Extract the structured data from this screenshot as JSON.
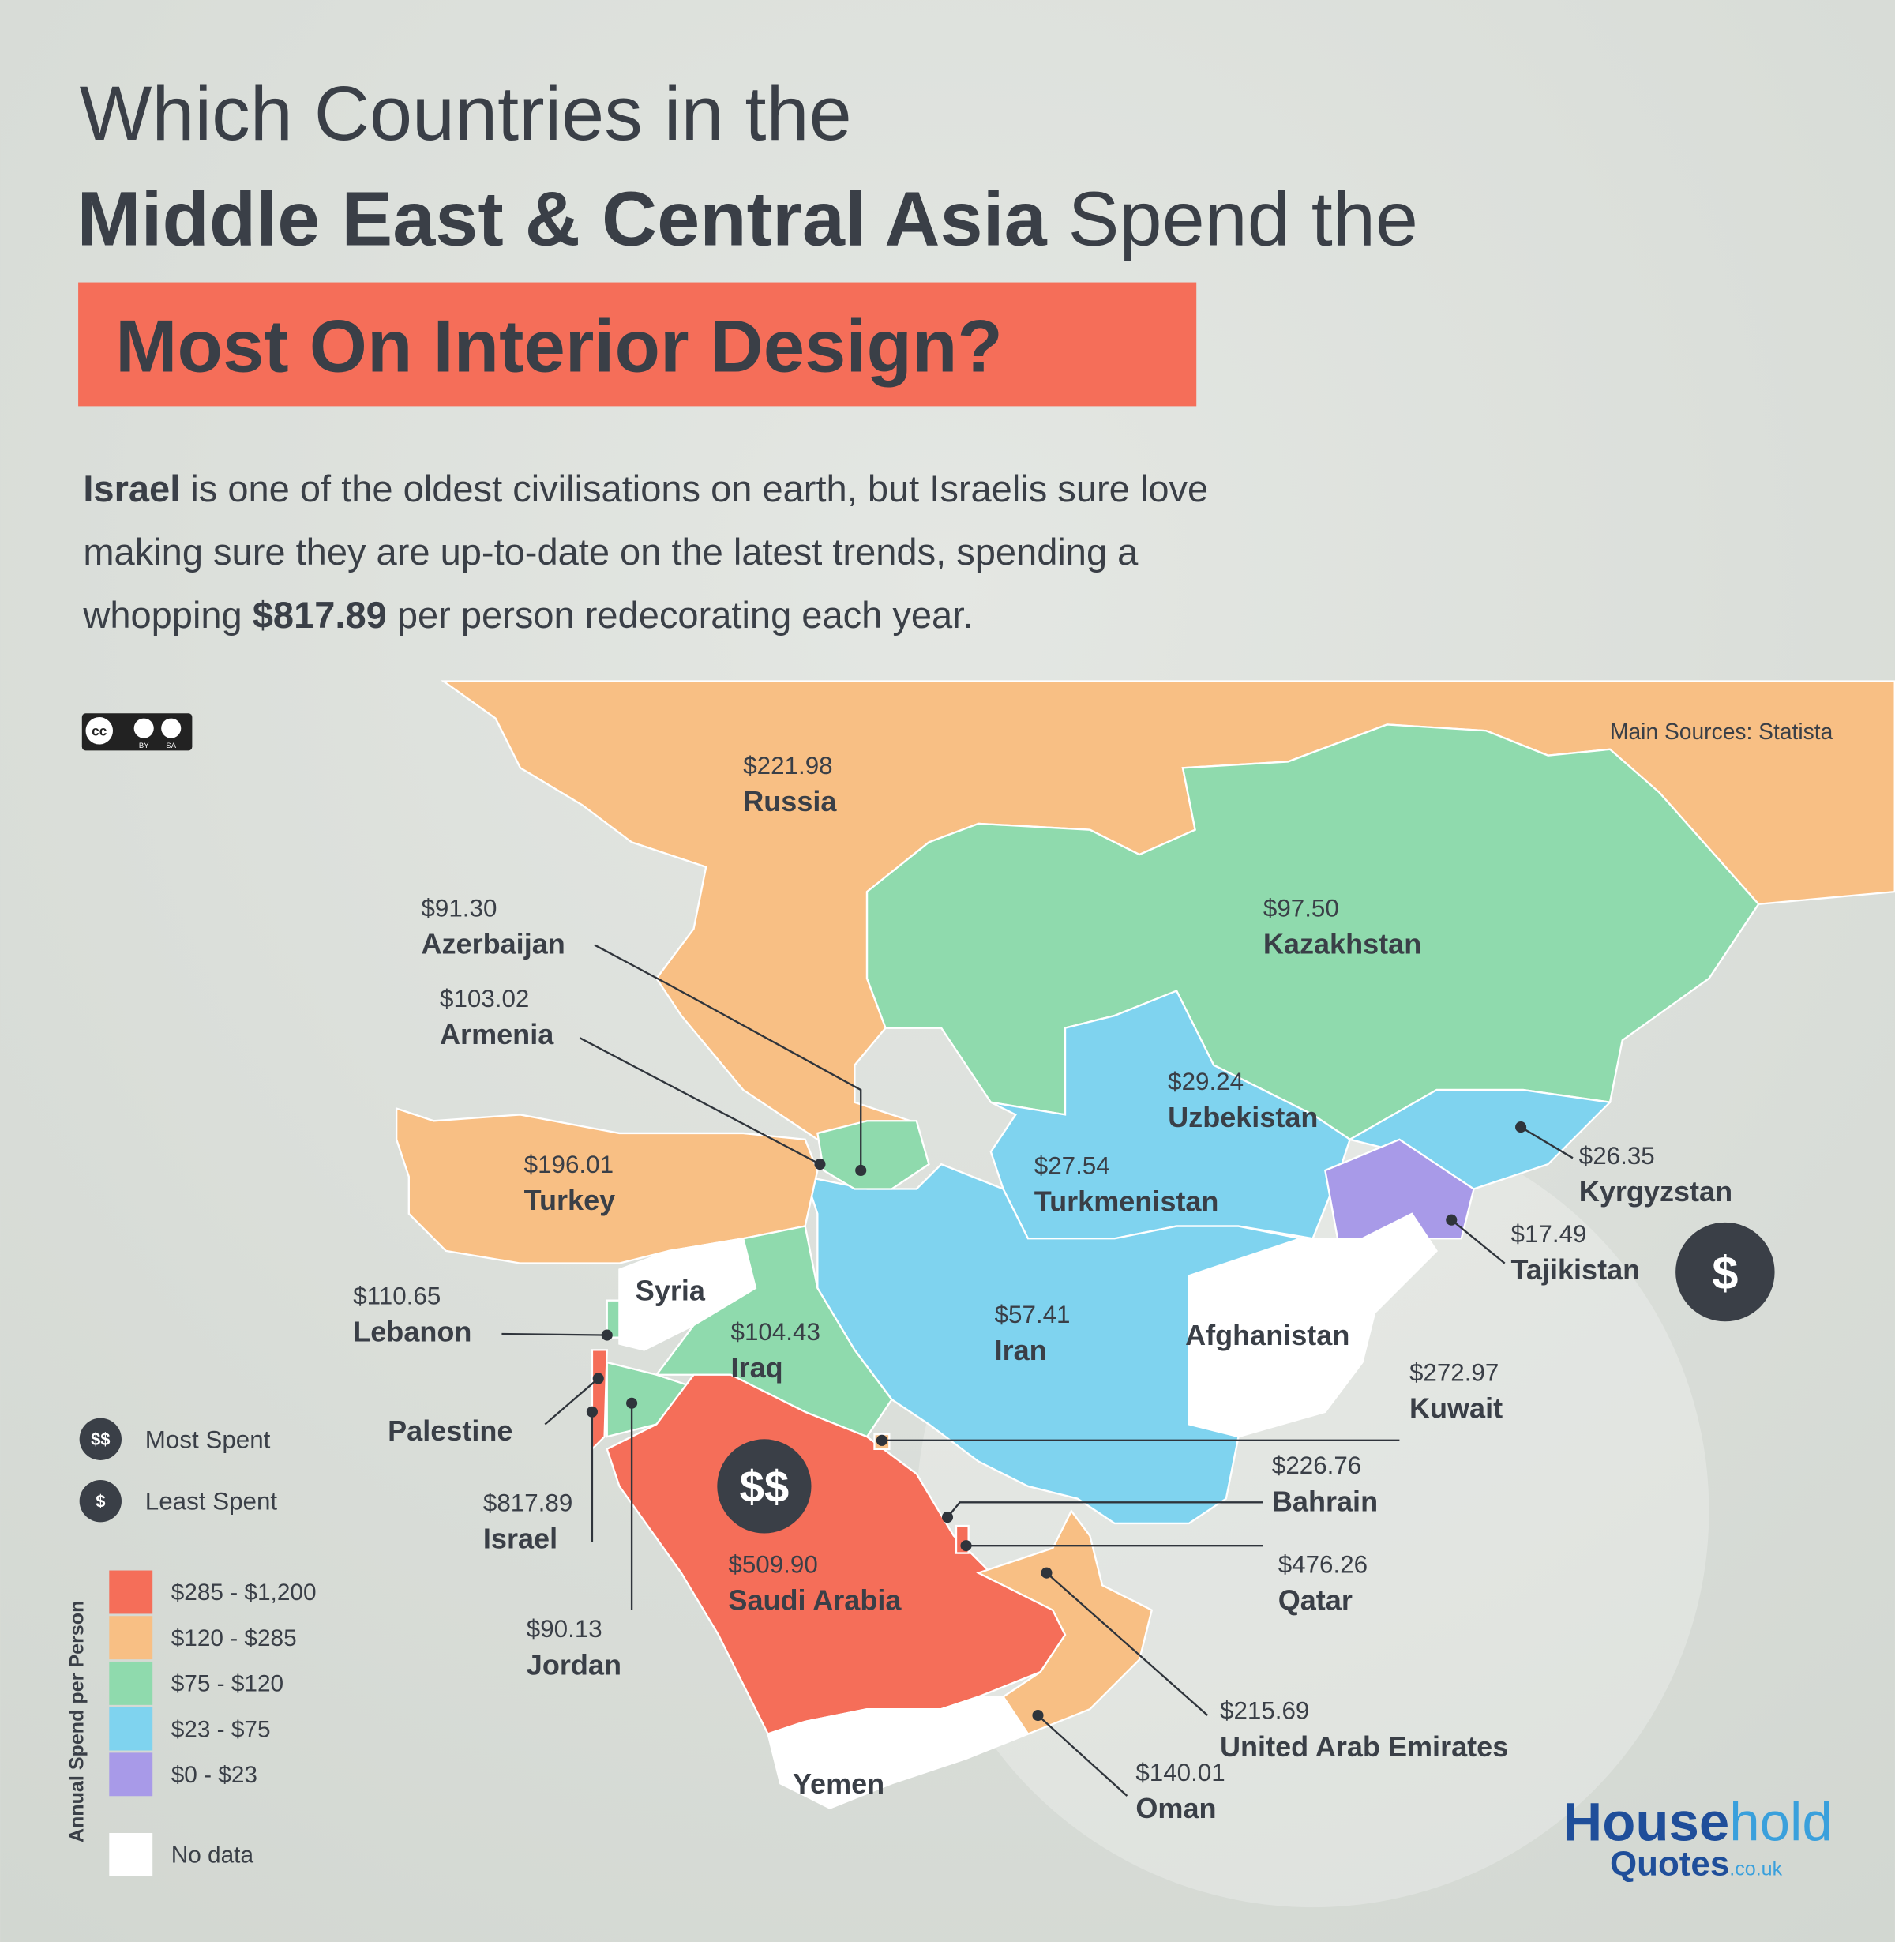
{
  "header": {
    "title_line1": "Which Countries in the",
    "title_line2_bold": "Middle East & Central Asia",
    "title_line2_rest": " Spend the",
    "highlight": "Most On Interior Design?"
  },
  "intro": {
    "lines": [
      [
        {
          "text": "Israel",
          "bold": true
        },
        {
          "text": " is one of the oldest civilisations on earth, but Israelis sure love",
          "bold": false
        }
      ],
      [
        {
          "text": "making sure they are up-to-date on the latest trends, spending a",
          "bold": false
        }
      ],
      [
        {
          "text": "whopping ",
          "bold": false
        },
        {
          "text": "$817.89",
          "bold": true
        },
        {
          "text": " per person redecorating each year.",
          "bold": false
        }
      ]
    ]
  },
  "source": "Main Sources: Statista",
  "license": {
    "cc": "cc",
    "by": "BY",
    "sa": "SA"
  },
  "markers": [
    {
      "symbol": "$$",
      "label": "Most Spent"
    },
    {
      "symbol": "$",
      "label": "Least Spent"
    }
  ],
  "map_markers": {
    "most": "$$",
    "least": "$"
  },
  "legend": {
    "title": "Annual Spend per Person",
    "bins": [
      {
        "label": "$285 - $1,200",
        "color": "#f56e59"
      },
      {
        "label": "$120 - $285",
        "color": "#f8bf84"
      },
      {
        "label": "$75 - $120",
        "color": "#8fdaad"
      },
      {
        "label": "$23 - $75",
        "color": "#7fd3ef"
      },
      {
        "label": "$0 - $23",
        "color": "#a89ae8"
      }
    ],
    "no_data": {
      "label": "No data",
      "color": "#ffffff"
    }
  },
  "countries": [
    {
      "name": "Russia",
      "spend": "$221.98",
      "color": "#f8bf84"
    },
    {
      "name": "Kazakhstan",
      "spend": "$97.50",
      "color": "#8fdaad"
    },
    {
      "name": "Azerbaijan",
      "spend": "$91.30",
      "color": "#8fdaad"
    },
    {
      "name": "Armenia",
      "spend": "$103.02",
      "color": "#8fdaad"
    },
    {
      "name": "Turkey",
      "spend": "$196.01",
      "color": "#f8bf84"
    },
    {
      "name": "Uzbekistan",
      "spend": "$29.24",
      "color": "#7fd3ef"
    },
    {
      "name": "Turkmenistan",
      "spend": "$27.54",
      "color": "#7fd3ef"
    },
    {
      "name": "Kyrgyzstan",
      "spend": "$26.35",
      "color": "#7fd3ef"
    },
    {
      "name": "Tajikistan",
      "spend": "$17.49",
      "color": "#a89ae8"
    },
    {
      "name": "Syria",
      "color": "#ffffff"
    },
    {
      "name": "Lebanon",
      "spend": "$110.65",
      "color": "#8fdaad"
    },
    {
      "name": "Iraq",
      "spend": "$104.43",
      "color": "#8fdaad"
    },
    {
      "name": "Iran",
      "spend": "$57.41",
      "color": "#7fd3ef"
    },
    {
      "name": "Afghanistan",
      "color": "#ffffff"
    },
    {
      "name": "Palestine"
    },
    {
      "name": "Israel",
      "spend": "$817.89",
      "color": "#f56e59"
    },
    {
      "name": "Jordan",
      "spend": "$90.13",
      "color": "#8fdaad"
    },
    {
      "name": "Kuwait",
      "spend": "$272.97",
      "color": "#f8bf84"
    },
    {
      "name": "Bahrain",
      "spend": "$226.76",
      "color": "#f8bf84"
    },
    {
      "name": "Qatar",
      "spend": "$476.26",
      "color": "#f56e59"
    },
    {
      "name": "Saudi Arabia",
      "spend": "$509.90",
      "color": "#f56e59"
    },
    {
      "name": "United Arab Emirates",
      "spend": "$215.69",
      "color": "#f8bf84"
    },
    {
      "name": "Oman",
      "spend": "$140.01",
      "color": "#f8bf84"
    },
    {
      "name": "Yemen",
      "color": "#ffffff"
    }
  ],
  "logo": {
    "house": "House",
    "hold": "hold",
    "quotes": "Quotes",
    "domain": ".co.uk"
  }
}
